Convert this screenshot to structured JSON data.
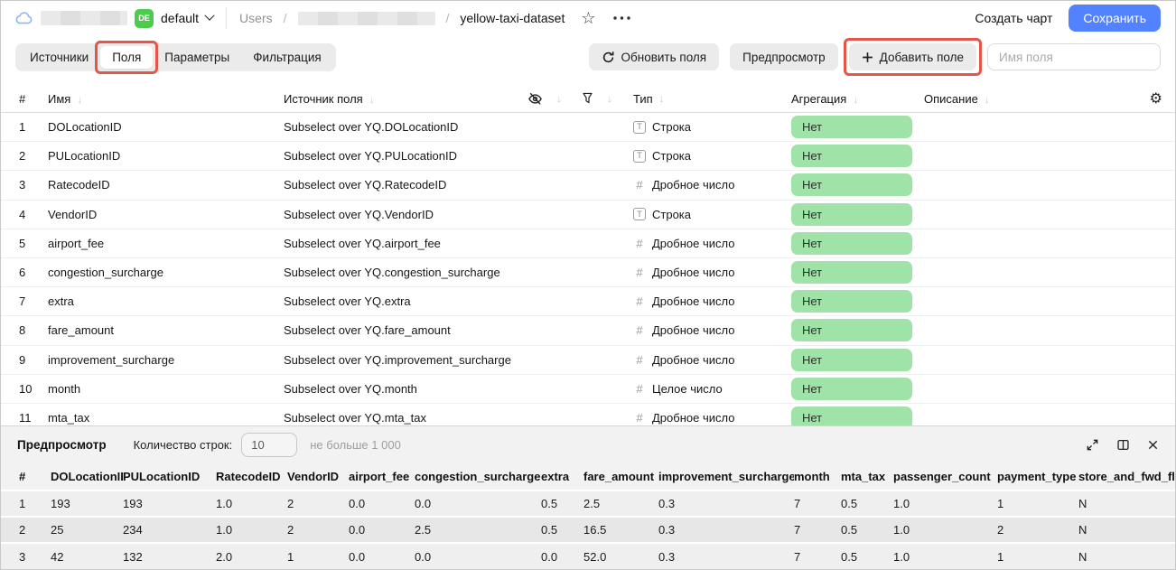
{
  "topbar": {
    "env_badge": "DE",
    "env_name": "default",
    "breadcrumb_root": "Users",
    "breadcrumb_sep": "/",
    "breadcrumb_current": "yellow-taxi-dataset",
    "create_chart_label": "Создать чарт",
    "save_label": "Сохранить"
  },
  "icons": {
    "sort_arrow": "↓",
    "gear": "⚙",
    "star": "☆"
  },
  "tabs": [
    {
      "key": "sources",
      "label": "Источники",
      "active": false,
      "highlighted": false
    },
    {
      "key": "fields",
      "label": "Поля",
      "active": true,
      "highlighted": true
    },
    {
      "key": "parameters",
      "label": "Параметры",
      "active": false,
      "highlighted": false
    },
    {
      "key": "filtering",
      "label": "Фильтрация",
      "active": false,
      "highlighted": false
    }
  ],
  "toolbar": {
    "refresh_label": "Обновить поля",
    "preview_label": "Предпросмотр",
    "add_field_label": "Добавить поле",
    "field_name_placeholder": "Имя поля"
  },
  "fields_table": {
    "headers": {
      "num": "#",
      "name": "Имя",
      "source": "Источник поля",
      "type": "Тип",
      "aggregation": "Агрегация",
      "description": "Описание"
    },
    "type_icon_glyphs": {
      "string": "T",
      "number": "#"
    },
    "rows": [
      {
        "num": "1",
        "name": "DOLocationID",
        "source": "Subselect over YQ.DOLocationID",
        "type_kind": "string",
        "type_label": "Строка",
        "aggregation": "Нет"
      },
      {
        "num": "2",
        "name": "PULocationID",
        "source": "Subselect over YQ.PULocationID",
        "type_kind": "string",
        "type_label": "Строка",
        "aggregation": "Нет"
      },
      {
        "num": "3",
        "name": "RatecodeID",
        "source": "Subselect over YQ.RatecodeID",
        "type_kind": "number",
        "type_label": "Дробное число",
        "aggregation": "Нет"
      },
      {
        "num": "4",
        "name": "VendorID",
        "source": "Subselect over YQ.VendorID",
        "type_kind": "string",
        "type_label": "Строка",
        "aggregation": "Нет"
      },
      {
        "num": "5",
        "name": "airport_fee",
        "source": "Subselect over YQ.airport_fee",
        "type_kind": "number",
        "type_label": "Дробное число",
        "aggregation": "Нет"
      },
      {
        "num": "6",
        "name": "congestion_surcharge",
        "source": "Subselect over YQ.congestion_surcharge",
        "type_kind": "number",
        "type_label": "Дробное число",
        "aggregation": "Нет"
      },
      {
        "num": "7",
        "name": "extra",
        "source": "Subselect over YQ.extra",
        "type_kind": "number",
        "type_label": "Дробное число",
        "aggregation": "Нет"
      },
      {
        "num": "8",
        "name": "fare_amount",
        "source": "Subselect over YQ.fare_amount",
        "type_kind": "number",
        "type_label": "Дробное число",
        "aggregation": "Нет"
      },
      {
        "num": "9",
        "name": "improvement_surcharge",
        "source": "Subselect over YQ.improvement_surcharge",
        "type_kind": "number",
        "type_label": "Дробное число",
        "aggregation": "Нет"
      },
      {
        "num": "10",
        "name": "month",
        "source": "Subselect over YQ.month",
        "type_kind": "number",
        "type_label": "Целое число",
        "aggregation": "Нет"
      },
      {
        "num": "11",
        "name": "mta_tax",
        "source": "Subselect over YQ.mta_tax",
        "type_kind": "number",
        "type_label": "Дробное число",
        "aggregation": "Нет"
      }
    ]
  },
  "preview": {
    "title": "Предпросмотр",
    "row_count_label": "Количество строк:",
    "row_count_value": "10",
    "row_count_hint": "не больше 1 000",
    "table": {
      "headers": [
        "#",
        "DOLocationID",
        "PULocationID",
        "RatecodeID",
        "VendorID",
        "airport_fee",
        "congestion_surcharge",
        "extra",
        "fare_amount",
        "improvement_surcharge",
        "month",
        "mta_tax",
        "passenger_count",
        "payment_type",
        "store_and_fwd_flag"
      ],
      "rows": [
        [
          "1",
          "193",
          "193",
          "1.0",
          "2",
          "0.0",
          "0.0",
          "0.5",
          "2.5",
          "0.3",
          "7",
          "0.5",
          "1.0",
          "1",
          "N"
        ],
        [
          "2",
          "25",
          "234",
          "1.0",
          "2",
          "0.0",
          "2.5",
          "0.5",
          "16.5",
          "0.3",
          "7",
          "0.5",
          "1.0",
          "2",
          "N"
        ],
        [
          "3",
          "42",
          "132",
          "2.0",
          "1",
          "0.0",
          "0.0",
          "0.0",
          "52.0",
          "0.3",
          "7",
          "0.5",
          "1.0",
          "1",
          "N"
        ]
      ]
    }
  },
  "colors": {
    "accent_blue": "#5282ff",
    "badge_green": "#4ccb4c",
    "aggregation_pill_green": "#a0e3a8",
    "annotation_red": "#e4564a"
  }
}
